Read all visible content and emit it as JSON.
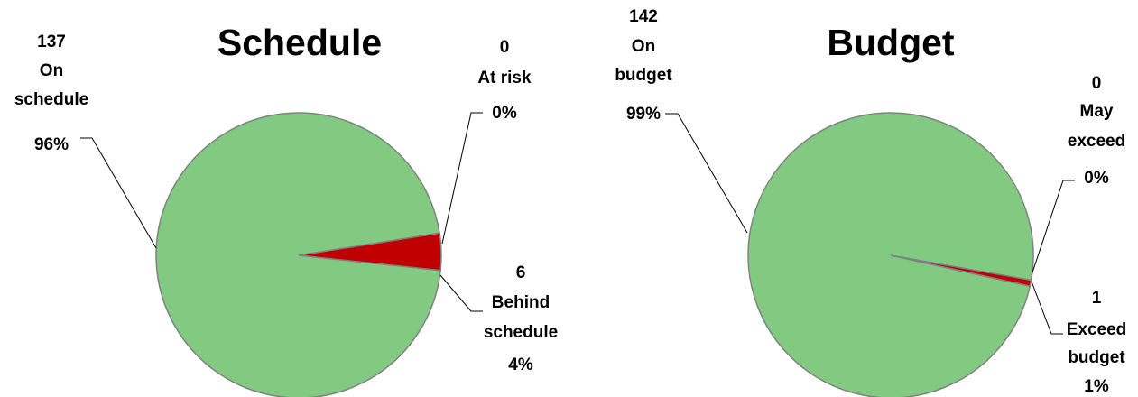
{
  "colors": {
    "on_track": "#82CA82",
    "at_risk": "#C00000",
    "outline": "#808080"
  },
  "chart_data": [
    {
      "type": "pie",
      "title": "Schedule",
      "slices": [
        {
          "name": "At risk",
          "value": 0,
          "percent": "0%",
          "color": "#C00000"
        },
        {
          "name": "Behind schedule",
          "value": 6,
          "percent": "4%",
          "color": "#C00000"
        },
        {
          "name": "On schedule",
          "value": 137,
          "percent": "96%",
          "color": "#82CA82"
        }
      ]
    },
    {
      "type": "pie",
      "title": "Budget",
      "slices": [
        {
          "name": "May exceed",
          "value": 0,
          "percent": "0%",
          "color": "#C00000"
        },
        {
          "name": "Exceed budget",
          "value": 1,
          "percent": "1%",
          "color": "#C00000"
        },
        {
          "name": "On budget",
          "value": 142,
          "percent": "99%",
          "color": "#82CA82"
        }
      ]
    }
  ]
}
